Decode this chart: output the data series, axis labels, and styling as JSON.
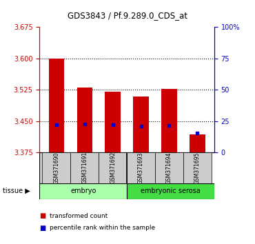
{
  "title": "GDS3843 / Pf.9.289.0_CDS_at",
  "samples": [
    "GSM371690",
    "GSM371691",
    "GSM371692",
    "GSM371693",
    "GSM371694",
    "GSM371695"
  ],
  "red_bar_top": [
    3.6,
    3.53,
    3.52,
    3.508,
    3.527,
    3.418
  ],
  "red_bar_bottom": 3.375,
  "blue_marker_value": [
    3.442,
    3.443,
    3.441,
    3.438,
    3.44,
    3.422
  ],
  "ylim": [
    3.375,
    3.675
  ],
  "y_ticks_left": [
    3.375,
    3.45,
    3.525,
    3.6,
    3.675
  ],
  "y_ticks_right_vals": [
    0,
    25,
    50,
    75,
    100
  ],
  "y_ticks_right_labels": [
    "0",
    "25",
    "50",
    "75",
    "100%"
  ],
  "embryo_color": "#AAFFAA",
  "serosa_color": "#44DD44",
  "sample_box_color": "#CCCCCC",
  "legend_red": "transformed count",
  "legend_blue": "percentile rank within the sample",
  "bar_width": 0.55,
  "bar_color": "#CC0000",
  "blue_color": "#0000CC",
  "left_axis_color": "#CC0000",
  "right_axis_color": "#0000CC"
}
